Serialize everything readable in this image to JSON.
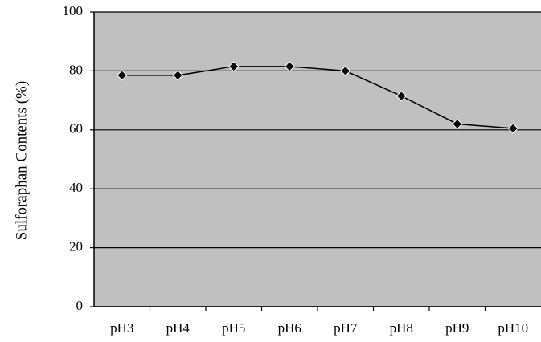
{
  "chart_data": {
    "type": "line",
    "y_label": "Sulforaphan Contents (%)",
    "categories": [
      "pH3",
      "pH4",
      "pH5",
      "pH6",
      "pH7",
      "pH8",
      "pH9",
      "pH10"
    ],
    "values": [
      78.5,
      78.5,
      81.5,
      81.5,
      80,
      71.5,
      62,
      60.5
    ],
    "color": "#000000",
    "plot_background": "#c0c0c0",
    "ylim": [
      0,
      100
    ],
    "yticks": [
      0,
      20,
      40,
      60,
      80,
      100
    ],
    "grid": true
  }
}
